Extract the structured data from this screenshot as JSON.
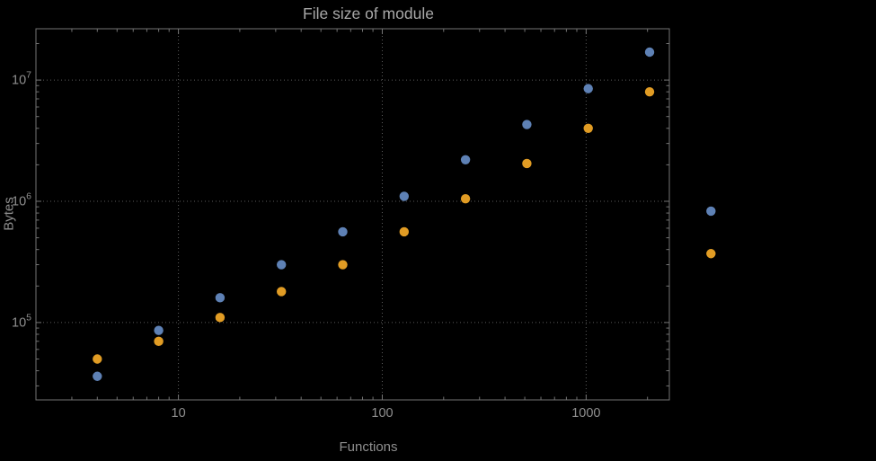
{
  "title": "File size of module",
  "axes": {
    "x_label": "Functions",
    "y_label": "Bytes"
  },
  "chart_data": {
    "type": "scatter",
    "title": "File size of module",
    "xlabel": "Functions",
    "ylabel": "Bytes",
    "x_scale": "log",
    "y_scale": "log",
    "grid": "dotted",
    "legend": "none",
    "x_range": [
      2.0,
      2560
    ],
    "y_range": [
      23000,
      26500000
    ],
    "x_ticks": [
      10,
      100,
      1000
    ],
    "y_ticks": [
      100000,
      1000000,
      10000000
    ],
    "x": [
      4,
      8,
      16,
      32,
      64,
      128,
      256,
      512,
      1024,
      2048,
      4096
    ],
    "series": [
      {
        "name": "series-blue",
        "color": "#5e81b5",
        "values": [
          36000,
          86000,
          160000,
          300000,
          560000,
          1100000,
          2200000,
          4300000,
          8500000,
          17000000,
          830000
        ]
      },
      {
        "name": "series-orange",
        "color": "#e19c24",
        "values": [
          50000,
          70000,
          110000,
          180000,
          300000,
          560000,
          1050000,
          2050000,
          4000000,
          8000000,
          370000
        ]
      }
    ]
  }
}
